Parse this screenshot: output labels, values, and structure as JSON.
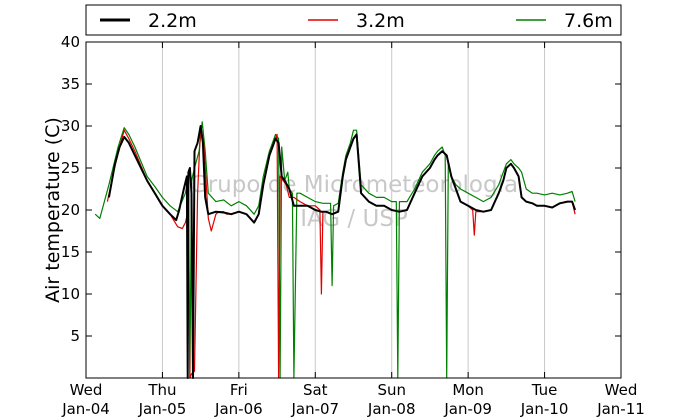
{
  "chart_data": {
    "type": "line",
    "title": "",
    "xlabel": "",
    "ylabel": "Air temperature (C)",
    "xlim": [
      0,
      7
    ],
    "ylim": [
      0,
      40
    ],
    "y_ticks": [
      5,
      10,
      15,
      20,
      25,
      30,
      35,
      40
    ],
    "x_ticks": [
      {
        "x": 0,
        "day": "Wed",
        "date": "Jan-04"
      },
      {
        "x": 1,
        "day": "Thu",
        "date": "Jan-05"
      },
      {
        "x": 2,
        "day": "Fri",
        "date": "Jan-06"
      },
      {
        "x": 3,
        "day": "Sat",
        "date": "Jan-07"
      },
      {
        "x": 4,
        "day": "Sun",
        "date": "Jan-08"
      },
      {
        "x": 5,
        "day": "Mon",
        "date": "Jan-09"
      },
      {
        "x": 6,
        "day": "Tue",
        "date": "Jan-10"
      },
      {
        "x": 7,
        "day": "Wed",
        "date": "Jan-11"
      }
    ],
    "grid": "vertical",
    "legend": "top",
    "watermark": [
      "Grupo de Micrometeorologia",
      "IAG / USP"
    ],
    "series": [
      {
        "name": "2.2m",
        "color": "#000000",
        "x": [
          0.3,
          0.38,
          0.44,
          0.5,
          0.56,
          0.64,
          0.8,
          0.9,
          1.0,
          1.1,
          1.18,
          1.22,
          1.28,
          1.32,
          1.33,
          1.34,
          1.36,
          1.38,
          1.4,
          1.42,
          1.46,
          1.5,
          1.53,
          1.56,
          1.6,
          1.7,
          1.8,
          1.9,
          2.0,
          2.1,
          2.2,
          2.26,
          2.32,
          2.4,
          2.44,
          2.48,
          2.52,
          2.56,
          2.6,
          2.66,
          2.72,
          2.8,
          2.9,
          3.0,
          3.08,
          3.14,
          3.22,
          3.3,
          3.36,
          3.4,
          3.46,
          3.5,
          3.54,
          3.6,
          3.7,
          3.8,
          3.9,
          4.0,
          4.1,
          4.2,
          4.3,
          4.4,
          4.5,
          4.56,
          4.6,
          4.66,
          4.72,
          4.78,
          4.84,
          4.9,
          5.0,
          5.1,
          5.2,
          5.3,
          5.4,
          5.46,
          5.5,
          5.56,
          5.6,
          5.66,
          5.7,
          5.76,
          5.84,
          5.9,
          6.0,
          6.1,
          6.2,
          6.3,
          6.36,
          6.4
        ],
        "y": [
          21.5,
          25.5,
          27.5,
          28.7,
          28.0,
          26.5,
          23.5,
          22.0,
          20.5,
          19.5,
          18.8,
          20.0,
          22.5,
          24.0,
          0.0,
          24.5,
          25.0,
          22.0,
          0.0,
          27.0,
          28.0,
          30.0,
          28.0,
          21.5,
          19.5,
          19.8,
          19.7,
          19.5,
          19.8,
          19.5,
          18.5,
          19.5,
          23.0,
          26.5,
          27.5,
          28.5,
          28.0,
          24.0,
          23.5,
          22.5,
          20.5,
          20.5,
          20.5,
          20.0,
          19.8,
          19.8,
          19.5,
          19.8,
          24.0,
          26.0,
          27.5,
          28.5,
          29.0,
          22.0,
          21.0,
          20.5,
          20.5,
          20.0,
          19.8,
          20.0,
          22.0,
          24.0,
          25.0,
          26.0,
          26.5,
          27.0,
          26.5,
          24.0,
          22.5,
          21.0,
          20.5,
          20.0,
          19.8,
          20.0,
          22.0,
          23.5,
          25.0,
          25.5,
          25.0,
          24.0,
          21.5,
          21.0,
          20.8,
          20.5,
          20.5,
          20.3,
          20.8,
          21.0,
          21.0,
          20.0
        ]
      },
      {
        "name": "3.2m",
        "color": "#e00000",
        "x": [
          0.28,
          0.36,
          0.44,
          0.5,
          0.56,
          0.64,
          0.8,
          0.9,
          1.0,
          1.1,
          1.2,
          1.26,
          1.3,
          1.34,
          1.36,
          1.38,
          1.42,
          1.46,
          1.5,
          1.54,
          1.58,
          1.6,
          1.64,
          1.7,
          1.74,
          1.8,
          1.84,
          1.9,
          2.0,
          2.1,
          2.2,
          2.26,
          2.32,
          2.4,
          2.44,
          2.48,
          2.5,
          2.52,
          2.54,
          2.58,
          2.62,
          2.66,
          2.72,
          2.8,
          2.9,
          3.0,
          3.06,
          3.08,
          3.1,
          3.12,
          3.14,
          3.22,
          3.3,
          3.36,
          3.4,
          3.46,
          3.5,
          3.54,
          3.6,
          3.7,
          3.8,
          3.9,
          4.0,
          4.1,
          4.2,
          4.3,
          4.4,
          4.5,
          4.56,
          4.6,
          4.66,
          4.72,
          4.78,
          4.84,
          4.9,
          5.0,
          5.06,
          5.08,
          5.1,
          5.2,
          5.3,
          5.4,
          5.46,
          5.5,
          5.56,
          5.6,
          5.66,
          5.7,
          5.76,
          5.84,
          5.9,
          6.0,
          6.1,
          6.2,
          6.3,
          6.36,
          6.4
        ],
        "y": [
          21.0,
          24.5,
          27.5,
          29.5,
          28.5,
          27.0,
          23.5,
          22.0,
          20.5,
          19.5,
          18.0,
          17.8,
          18.5,
          20.0,
          0.0,
          0.5,
          0.8,
          22.0,
          30.0,
          28.0,
          22.0,
          19.0,
          17.5,
          19.5,
          19.8,
          19.8,
          19.5,
          19.5,
          19.8,
          19.5,
          18.5,
          19.5,
          23.0,
          26.5,
          27.5,
          28.5,
          29.0,
          0.0,
          24.0,
          23.5,
          23.0,
          21.5,
          21.5,
          21.0,
          20.5,
          20.5,
          20.0,
          10.0,
          19.8,
          19.8,
          19.8,
          19.5,
          19.8,
          24.0,
          26.0,
          27.5,
          28.5,
          29.0,
          22.0,
          21.0,
          20.5,
          20.5,
          20.0,
          19.8,
          20.0,
          22.0,
          24.0,
          25.0,
          26.0,
          26.5,
          27.0,
          26.5,
          24.0,
          22.5,
          21.0,
          20.5,
          20.0,
          17.0,
          19.8,
          19.8,
          20.0,
          22.0,
          23.5,
          25.0,
          25.5,
          25.0,
          24.0,
          21.5,
          21.0,
          20.8,
          20.5,
          20.5,
          20.3,
          20.8,
          21.0,
          21.0,
          19.5
        ]
      },
      {
        "name": "7.6m",
        "color": "#008000",
        "x": [
          0.12,
          0.18,
          0.3,
          0.42,
          0.5,
          0.56,
          0.64,
          0.8,
          0.9,
          1.0,
          1.1,
          1.2,
          1.3,
          1.34,
          1.36,
          1.38,
          1.42,
          1.48,
          1.52,
          1.56,
          1.6,
          1.7,
          1.8,
          1.9,
          2.0,
          2.1,
          2.2,
          2.26,
          2.32,
          2.4,
          2.44,
          2.48,
          2.52,
          2.54,
          2.56,
          2.6,
          2.64,
          2.66,
          2.7,
          2.72,
          2.76,
          2.8,
          2.9,
          3.0,
          3.1,
          3.2,
          3.22,
          3.24,
          3.3,
          3.36,
          3.4,
          3.46,
          3.5,
          3.54,
          3.6,
          3.7,
          3.8,
          3.9,
          4.0,
          4.06,
          4.08,
          4.1,
          4.2,
          4.3,
          4.4,
          4.5,
          4.56,
          4.6,
          4.66,
          4.7,
          4.72,
          4.74,
          4.78,
          4.84,
          4.9,
          5.0,
          5.1,
          5.2,
          5.3,
          5.4,
          5.46,
          5.5,
          5.56,
          5.6,
          5.66,
          5.7,
          5.76,
          5.84,
          5.9,
          6.0,
          6.1,
          6.2,
          6.3,
          6.36,
          6.4
        ],
        "y": [
          19.5,
          19.0,
          23.0,
          27.5,
          29.8,
          29.0,
          27.5,
          24.0,
          22.8,
          21.5,
          20.5,
          19.8,
          22.0,
          24.0,
          0.0,
          23.5,
          25.0,
          27.0,
          30.5,
          27.0,
          22.0,
          21.0,
          21.2,
          20.5,
          21.0,
          20.5,
          19.5,
          20.5,
          24.0,
          27.0,
          28.0,
          29.0,
          28.5,
          0.0,
          27.5,
          23.5,
          24.5,
          22.5,
          22.0,
          0.0,
          22.0,
          22.0,
          21.5,
          21.0,
          20.8,
          20.8,
          11.0,
          20.5,
          20.8,
          24.5,
          26.5,
          28.0,
          29.5,
          29.5,
          23.0,
          22.0,
          21.5,
          21.5,
          21.0,
          21.0,
          0.0,
          21.0,
          21.0,
          22.5,
          24.5,
          25.5,
          26.5,
          27.0,
          27.5,
          26.5,
          0.0,
          25.5,
          24.0,
          23.0,
          22.5,
          22.0,
          21.5,
          21.0,
          21.5,
          23.0,
          24.5,
          25.5,
          26.0,
          25.5,
          25.0,
          24.5,
          22.5,
          22.0,
          22.0,
          21.8,
          22.0,
          21.8,
          22.0,
          22.2,
          21.0
        ]
      }
    ]
  }
}
